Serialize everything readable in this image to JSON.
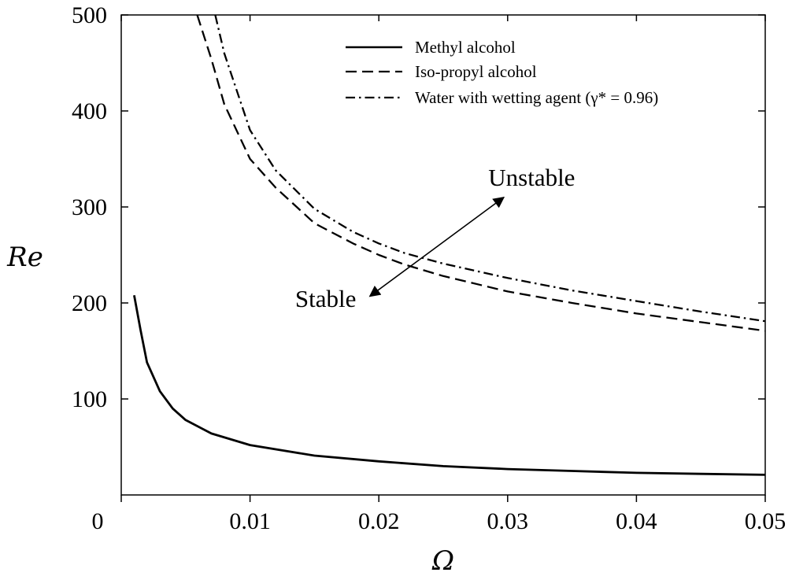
{
  "chart_data": {
    "type": "line",
    "xlabel": "Ω",
    "ylabel": "Re",
    "xlim": [
      0,
      0.05
    ],
    "ylim": [
      0,
      500
    ],
    "x_ticks": [
      "0",
      "0.01",
      "0.02",
      "0.03",
      "0.04",
      "0.05"
    ],
    "y_ticks": [
      "100",
      "200",
      "300",
      "400",
      "500"
    ],
    "grid": false,
    "legend_position": "top-right",
    "series": [
      {
        "name": "Methyl alcohol",
        "style": "solid",
        "x": [
          0.001,
          0.0015,
          0.002,
          0.003,
          0.004,
          0.005,
          0.007,
          0.01,
          0.015,
          0.02,
          0.025,
          0.03,
          0.035,
          0.04,
          0.045,
          0.05
        ],
        "y": [
          208,
          172,
          138,
          108,
          90,
          78,
          64,
          52,
          41,
          35,
          30,
          27,
          25,
          23,
          22,
          21
        ]
      },
      {
        "name": "Iso-propyl alcohol",
        "style": "dashed",
        "x": [
          0.0059,
          0.007,
          0.008,
          0.01,
          0.012,
          0.015,
          0.018,
          0.02,
          0.022,
          0.025,
          0.03,
          0.035,
          0.04,
          0.045,
          0.05
        ],
        "y": [
          500,
          454,
          407,
          350,
          320,
          283,
          262,
          250,
          240,
          228,
          212,
          200,
          189,
          180,
          171
        ]
      },
      {
        "name": "Water with wetting agent (γ* = 0.96)",
        "style": "dashdot",
        "x": [
          0.0073,
          0.008,
          0.01,
          0.012,
          0.015,
          0.018,
          0.02,
          0.022,
          0.025,
          0.03,
          0.035,
          0.04,
          0.045,
          0.05
        ],
        "y": [
          500,
          460,
          380,
          338,
          298,
          274,
          262,
          252,
          241,
          226,
          213,
          202,
          191,
          181
        ]
      }
    ],
    "annotations": [
      {
        "text": "Unstable",
        "x": 0.0285,
        "y": 322
      },
      {
        "text": "Stable",
        "x": 0.0135,
        "y": 196
      }
    ],
    "arrow": {
      "from": [
        0.0193,
        207
      ],
      "to": [
        0.0297,
        310
      ]
    }
  },
  "colors": {
    "line": "#000000",
    "background": "#ffffff"
  }
}
